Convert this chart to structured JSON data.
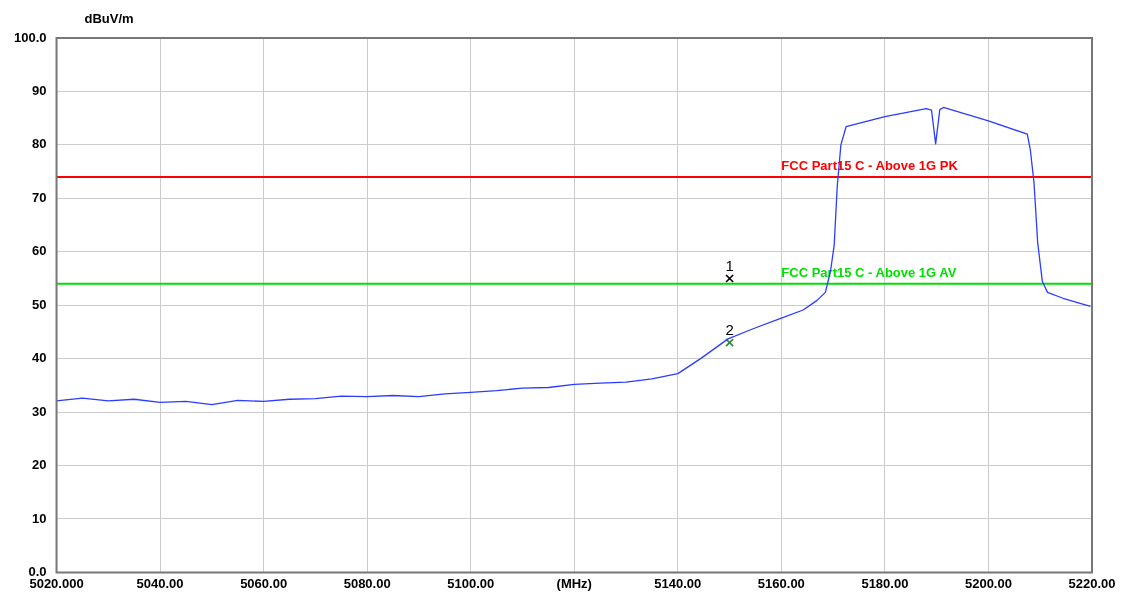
{
  "chart_data": {
    "type": "line",
    "ylabel": "dBuV/m",
    "xlim": [
      5020,
      5220
    ],
    "xticks": [
      {
        "value": 5020,
        "label": "5020.000"
      },
      {
        "value": 5040,
        "label": "5040.00"
      },
      {
        "value": 5060,
        "label": "5060.00"
      },
      {
        "value": 5080,
        "label": "5080.00"
      },
      {
        "value": 5100,
        "label": "5100.00"
      },
      {
        "value": 5120,
        "label": "(MHz)"
      },
      {
        "value": 5140,
        "label": "5140.00"
      },
      {
        "value": 5160,
        "label": "5160.00"
      },
      {
        "value": 5180,
        "label": "5180.00"
      },
      {
        "value": 5200,
        "label": "5200.00"
      },
      {
        "value": 5220,
        "label": "5220.00"
      }
    ],
    "ylim": [
      0,
      100
    ],
    "yticks": [
      {
        "value": 0,
        "label": "0.0"
      },
      10,
      20,
      30,
      40,
      50,
      60,
      70,
      80,
      90,
      {
        "value": 100,
        "label": "100.0"
      }
    ],
    "grid": true,
    "legend": false,
    "series": [
      {
        "color": "#2b3cff",
        "marker": "none",
        "x": [
          5020,
          5025,
          5030,
          5035,
          5040,
          5045,
          5050,
          5055,
          5060,
          5065,
          5070,
          5075,
          5080,
          5085,
          5090,
          5095,
          5100,
          5105,
          5110,
          5115,
          5120,
          5125,
          5130,
          5135,
          5140,
          5144.4,
          5149.7,
          5154.3,
          5160,
          5164.2,
          5166.9,
          5168.5,
          5169.5,
          5170.2,
          5170.8,
          5171.5,
          5172.5,
          5180,
          5188,
          5189,
          5189.8,
          5190.6,
          5191.3,
          5200,
          5207.5,
          5208.1,
          5208.8,
          5209.5,
          5210.4,
          5211.4,
          5214.4,
          5219.7
        ],
        "values": [
          32.1,
          32.6,
          32.1,
          32.4,
          31.8,
          32.0,
          31.4,
          32.2,
          32.0,
          32.4,
          32.5,
          33.0,
          32.9,
          33.1,
          32.9,
          33.4,
          33.7,
          34.0,
          34.5,
          34.6,
          35.2,
          35.4,
          35.6,
          36.2,
          37.2,
          40,
          43.7,
          45.5,
          47.6,
          49.1,
          50.9,
          52.4,
          56.4,
          61.2,
          72.3,
          80.0,
          83.4,
          85.3,
          86.8,
          86.5,
          80.2,
          86.6,
          87,
          84.5,
          82.0,
          79.0,
          72.9,
          61.8,
          54.5,
          52.4,
          51.3,
          49.8
        ]
      },
      {
        "type": "scatter",
        "color": "#000000",
        "marker": "cross",
        "x": [
          5150
        ],
        "values": [
          55
        ]
      },
      {
        "type": "scatter",
        "color": "#2e8b2e",
        "marker": "cross",
        "x": [
          5150
        ],
        "values": [
          43
        ]
      }
    ],
    "ref_lines": [
      {
        "axis": "y",
        "value": 74,
        "label": "FCC Part15 C - Above 1G PK",
        "color": "#ff0000"
      },
      {
        "axis": "y",
        "value": 54,
        "label": "FCC Part15 C - Above 1G AV",
        "color": "#00e000"
      }
    ],
    "annotations": [
      {
        "text": "1",
        "x": 5150,
        "y": 55
      },
      {
        "text": "2",
        "x": 5150,
        "y": 43
      }
    ]
  }
}
